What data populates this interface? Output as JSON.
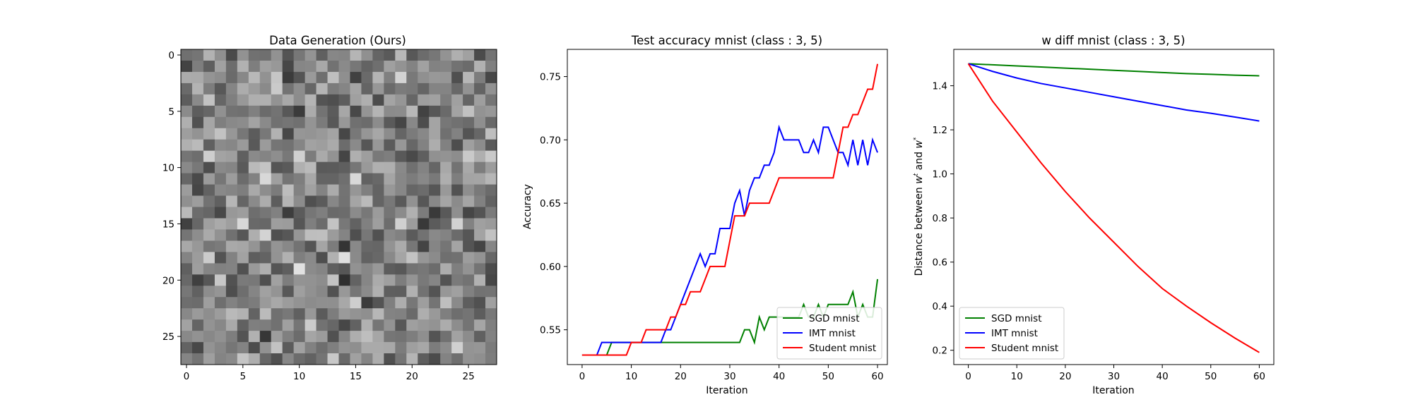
{
  "chart_data": [
    {
      "type": "heatmap",
      "title": "Data Generation (Ours)",
      "xlabel": "",
      "ylabel": "",
      "size": 28,
      "colormap": "gray",
      "xticks": [
        0,
        5,
        10,
        15,
        20,
        25
      ],
      "yticks": [
        0,
        5,
        10,
        15,
        20,
        25
      ],
      "xlim": [
        -0.5,
        27.5
      ],
      "ylim": [
        27.5,
        -0.5
      ]
    },
    {
      "type": "line",
      "title": "Test accuracy mnist (class : 3, 5)",
      "xlabel": "Iteration",
      "ylabel": "Accuracy",
      "xlim": [
        -3,
        62
      ],
      "ylim": [
        0.5225,
        0.7715
      ],
      "xticks": [
        0,
        10,
        20,
        30,
        40,
        50,
        60
      ],
      "yticks": [
        0.55,
        0.6,
        0.65,
        0.7,
        0.75
      ],
      "ytick_labels": [
        "0.55",
        "0.60",
        "0.65",
        "0.70",
        "0.75"
      ],
      "legend": "lower-right",
      "grid": false,
      "x": [
        0,
        1,
        2,
        3,
        4,
        5,
        6,
        7,
        8,
        9,
        10,
        11,
        12,
        13,
        14,
        15,
        16,
        17,
        18,
        19,
        20,
        21,
        22,
        23,
        24,
        25,
        26,
        27,
        28,
        29,
        30,
        31,
        32,
        33,
        34,
        35,
        36,
        37,
        38,
        39,
        40,
        41,
        42,
        43,
        44,
        45,
        46,
        47,
        48,
        49,
        50,
        51,
        52,
        53,
        54,
        55,
        56,
        57,
        58,
        59,
        60
      ],
      "series": [
        {
          "name": "SGD mnist",
          "color": "#008000",
          "values": [
            0.53,
            0.53,
            0.53,
            0.53,
            0.53,
            0.53,
            0.54,
            0.54,
            0.54,
            0.54,
            0.54,
            0.54,
            0.54,
            0.54,
            0.54,
            0.54,
            0.54,
            0.54,
            0.54,
            0.54,
            0.54,
            0.54,
            0.54,
            0.54,
            0.54,
            0.54,
            0.54,
            0.54,
            0.54,
            0.54,
            0.54,
            0.54,
            0.54,
            0.55,
            0.55,
            0.54,
            0.56,
            0.55,
            0.56,
            0.56,
            0.56,
            0.56,
            0.56,
            0.56,
            0.56,
            0.57,
            0.56,
            0.56,
            0.57,
            0.56,
            0.57,
            0.57,
            0.57,
            0.57,
            0.57,
            0.58,
            0.56,
            0.57,
            0.56,
            0.56,
            0.59
          ]
        },
        {
          "name": "IMT mnist",
          "color": "#0000ff",
          "values": [
            0.53,
            0.53,
            0.53,
            0.53,
            0.54,
            0.54,
            0.54,
            0.54,
            0.54,
            0.54,
            0.54,
            0.54,
            0.54,
            0.54,
            0.54,
            0.54,
            0.54,
            0.55,
            0.55,
            0.56,
            0.57,
            0.58,
            0.59,
            0.6,
            0.61,
            0.6,
            0.61,
            0.61,
            0.63,
            0.63,
            0.63,
            0.65,
            0.66,
            0.64,
            0.66,
            0.67,
            0.67,
            0.68,
            0.68,
            0.69,
            0.71,
            0.7,
            0.7,
            0.7,
            0.7,
            0.69,
            0.69,
            0.7,
            0.69,
            0.71,
            0.71,
            0.7,
            0.69,
            0.69,
            0.68,
            0.7,
            0.68,
            0.7,
            0.68,
            0.7,
            0.69
          ]
        },
        {
          "name": "Student mnist",
          "color": "#ff0000",
          "values": [
            0.53,
            0.53,
            0.53,
            0.53,
            0.53,
            0.53,
            0.53,
            0.53,
            0.53,
            0.53,
            0.54,
            0.54,
            0.54,
            0.55,
            0.55,
            0.55,
            0.55,
            0.55,
            0.56,
            0.56,
            0.57,
            0.57,
            0.58,
            0.58,
            0.58,
            0.59,
            0.6,
            0.6,
            0.6,
            0.6,
            0.62,
            0.64,
            0.64,
            0.64,
            0.65,
            0.65,
            0.65,
            0.65,
            0.65,
            0.66,
            0.67,
            0.67,
            0.67,
            0.67,
            0.67,
            0.67,
            0.67,
            0.67,
            0.67,
            0.67,
            0.67,
            0.67,
            0.69,
            0.71,
            0.71,
            0.72,
            0.72,
            0.73,
            0.74,
            0.74,
            0.76
          ]
        }
      ]
    },
    {
      "type": "line",
      "title": "w diff mnist (class : 3, 5)",
      "xlabel": "Iteration",
      "ylabel": "Distance between w^t and w^*",
      "ylabel_parts": {
        "prefix": "Distance between ",
        "var1": "w",
        "sup1": "t",
        "mid": " and ",
        "var2": "w",
        "sup2": "*"
      },
      "xlim": [
        -3,
        63
      ],
      "ylim": [
        0.135,
        1.565
      ],
      "xticks": [
        0,
        10,
        20,
        30,
        40,
        50,
        60
      ],
      "yticks": [
        0.2,
        0.4,
        0.6,
        0.8,
        1.0,
        1.2,
        1.4
      ],
      "ytick_labels": [
        "0.2",
        "0.4",
        "0.6",
        "0.8",
        "1.0",
        "1.2",
        "1.4"
      ],
      "legend": "lower-left",
      "grid": false,
      "x": [
        0,
        5,
        10,
        15,
        20,
        25,
        30,
        35,
        40,
        45,
        50,
        55,
        60
      ],
      "series": [
        {
          "name": "SGD mnist",
          "color": "#008000",
          "values": [
            1.5,
            1.495,
            1.49,
            1.485,
            1.48,
            1.475,
            1.47,
            1.465,
            1.46,
            1.455,
            1.452,
            1.448,
            1.445
          ]
        },
        {
          "name": "IMT mnist",
          "color": "#0000ff",
          "values": [
            1.5,
            1.465,
            1.435,
            1.41,
            1.39,
            1.37,
            1.35,
            1.33,
            1.31,
            1.29,
            1.275,
            1.258,
            1.24
          ]
        },
        {
          "name": "Student mnist",
          "color": "#ff0000",
          "values": [
            1.5,
            1.33,
            1.19,
            1.05,
            0.92,
            0.8,
            0.69,
            0.58,
            0.48,
            0.4,
            0.325,
            0.255,
            0.19
          ]
        }
      ]
    }
  ]
}
